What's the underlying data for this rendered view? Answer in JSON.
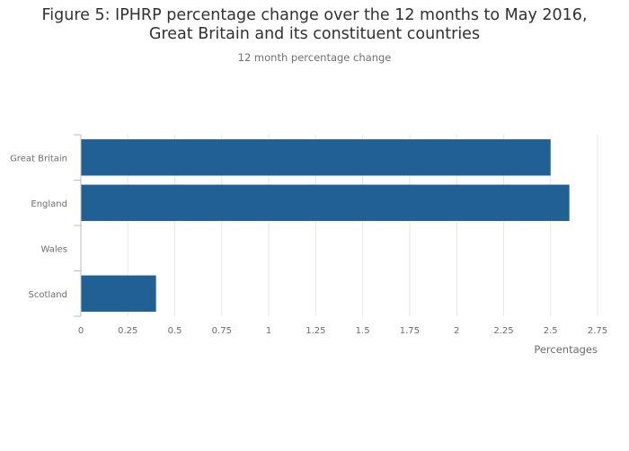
{
  "chart_data": {
    "type": "bar",
    "orientation": "horizontal",
    "title": "Figure 5: IPHRP percentage change over the 12 months to May 2016, Great Britain and its constituent countries",
    "subtitle": "12 month percentage change",
    "xlabel": "Percentages",
    "ylabel": "",
    "categories": [
      "Great Britain",
      "England",
      "Wales",
      "Scotland"
    ],
    "values": [
      2.5,
      2.6,
      0,
      0.4
    ],
    "xlim": [
      0,
      2.75
    ],
    "xticks": [
      "0",
      "0.25",
      "0.5",
      "0.75",
      "1",
      "1.25",
      "1.5",
      "1.75",
      "2",
      "2.25",
      "2.5",
      "2.75"
    ],
    "grid": true,
    "bar_color": "#206095",
    "grid_color": "#e6e6e6",
    "axis_color": "#bcbcbc"
  }
}
